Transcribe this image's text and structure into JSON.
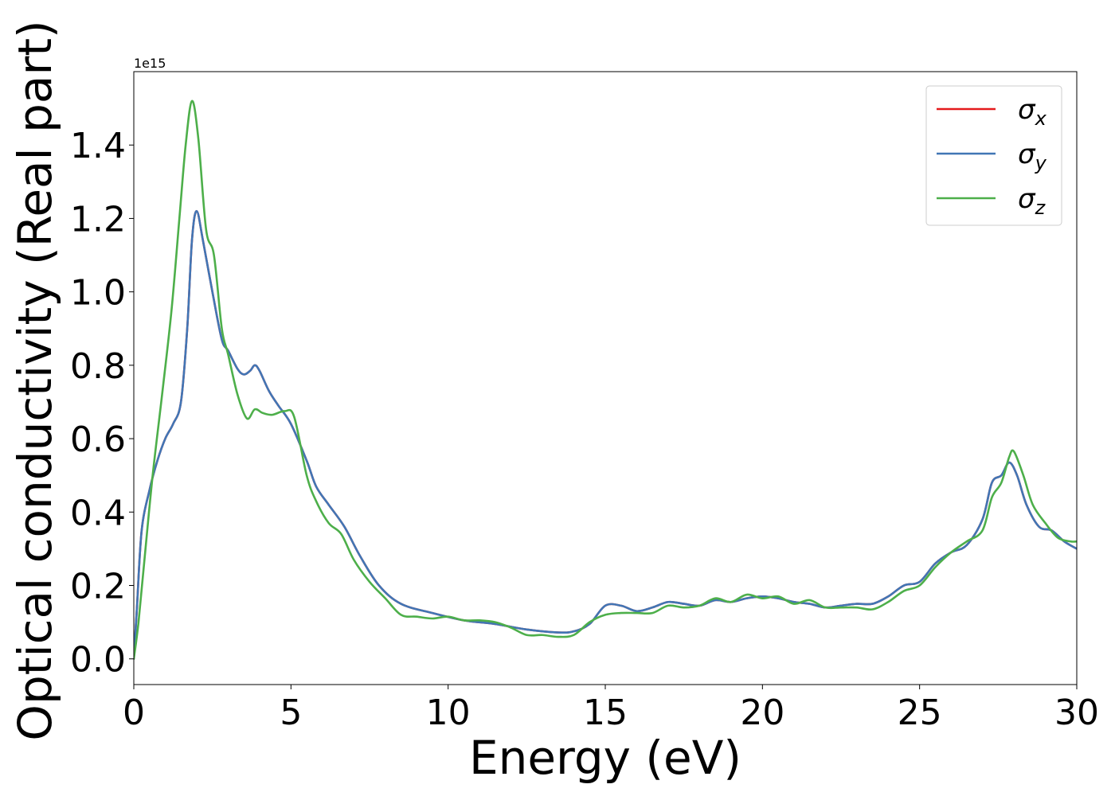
{
  "chart_data": {
    "type": "line",
    "title": "",
    "xlabel": "Energy (eV)",
    "ylabel": "Optical conductivity (Real part)",
    "y_offset_label": "1e15",
    "xlim": [
      0,
      30
    ],
    "ylim": [
      -0.07,
      1.6
    ],
    "x_ticks": [
      0,
      5,
      10,
      15,
      20,
      25,
      30
    ],
    "x_tick_labels": [
      "0",
      "5",
      "10",
      "15",
      "20",
      "25",
      "30"
    ],
    "y_ticks": [
      0.0,
      0.2,
      0.4,
      0.6,
      0.8,
      1.0,
      1.2,
      1.4
    ],
    "y_tick_labels": [
      "0.0",
      "0.2",
      "0.4",
      "0.6",
      "0.8",
      "1.0",
      "1.2",
      "1.4"
    ],
    "grid": false,
    "legend_position": "top-right",
    "series": [
      {
        "name": "σx",
        "legend_base": "σ",
        "legend_sub": "x",
        "color": "#e41a1c",
        "points": [
          [
            0,
            0
          ],
          [
            0.1,
            0.14
          ],
          [
            0.25,
            0.35
          ],
          [
            0.5,
            0.46
          ],
          [
            0.75,
            0.54
          ],
          [
            1.0,
            0.6
          ],
          [
            1.25,
            0.64
          ],
          [
            1.5,
            0.7
          ],
          [
            1.7,
            0.9
          ],
          [
            1.85,
            1.14
          ],
          [
            2.0,
            1.22
          ],
          [
            2.2,
            1.14
          ],
          [
            2.5,
            1.0
          ],
          [
            2.8,
            0.87
          ],
          [
            3.0,
            0.84
          ],
          [
            3.3,
            0.79
          ],
          [
            3.5,
            0.775
          ],
          [
            3.7,
            0.785
          ],
          [
            3.85,
            0.8
          ],
          [
            4.0,
            0.785
          ],
          [
            4.3,
            0.73
          ],
          [
            4.6,
            0.69
          ],
          [
            5.0,
            0.64
          ],
          [
            5.5,
            0.54
          ],
          [
            5.8,
            0.47
          ],
          [
            6.2,
            0.42
          ],
          [
            6.7,
            0.36
          ],
          [
            7.2,
            0.28
          ],
          [
            7.8,
            0.2
          ],
          [
            8.5,
            0.15
          ],
          [
            9.5,
            0.125
          ],
          [
            10.5,
            0.105
          ],
          [
            11.5,
            0.095
          ],
          [
            12.5,
            0.08
          ],
          [
            13.5,
            0.072
          ],
          [
            14.0,
            0.075
          ],
          [
            14.5,
            0.095
          ],
          [
            15.0,
            0.145
          ],
          [
            15.5,
            0.145
          ],
          [
            16.0,
            0.13
          ],
          [
            16.5,
            0.14
          ],
          [
            17.0,
            0.155
          ],
          [
            17.5,
            0.15
          ],
          [
            18.0,
            0.145
          ],
          [
            18.5,
            0.16
          ],
          [
            19.0,
            0.155
          ],
          [
            19.5,
            0.165
          ],
          [
            20.0,
            0.17
          ],
          [
            20.5,
            0.165
          ],
          [
            21.0,
            0.155
          ],
          [
            21.5,
            0.15
          ],
          [
            22.0,
            0.14
          ],
          [
            22.5,
            0.145
          ],
          [
            23.0,
            0.15
          ],
          [
            23.5,
            0.15
          ],
          [
            24.0,
            0.17
          ],
          [
            24.5,
            0.2
          ],
          [
            25.0,
            0.21
          ],
          [
            25.5,
            0.26
          ],
          [
            26.0,
            0.29
          ],
          [
            26.5,
            0.31
          ],
          [
            27.0,
            0.38
          ],
          [
            27.3,
            0.48
          ],
          [
            27.6,
            0.5
          ],
          [
            27.85,
            0.535
          ],
          [
            28.1,
            0.5
          ],
          [
            28.4,
            0.42
          ],
          [
            28.8,
            0.36
          ],
          [
            29.2,
            0.35
          ],
          [
            29.6,
            0.32
          ],
          [
            30.0,
            0.3
          ]
        ]
      },
      {
        "name": "σy",
        "legend_base": "σ",
        "legend_sub": "y",
        "color": "#4176b5",
        "points": [
          [
            0,
            0
          ],
          [
            0.1,
            0.14
          ],
          [
            0.25,
            0.35
          ],
          [
            0.5,
            0.46
          ],
          [
            0.75,
            0.54
          ],
          [
            1.0,
            0.6
          ],
          [
            1.25,
            0.64
          ],
          [
            1.5,
            0.7
          ],
          [
            1.7,
            0.9
          ],
          [
            1.85,
            1.14
          ],
          [
            2.0,
            1.22
          ],
          [
            2.2,
            1.14
          ],
          [
            2.5,
            1.0
          ],
          [
            2.8,
            0.87
          ],
          [
            3.0,
            0.84
          ],
          [
            3.3,
            0.79
          ],
          [
            3.5,
            0.775
          ],
          [
            3.7,
            0.785
          ],
          [
            3.85,
            0.8
          ],
          [
            4.0,
            0.785
          ],
          [
            4.3,
            0.73
          ],
          [
            4.6,
            0.69
          ],
          [
            5.0,
            0.64
          ],
          [
            5.5,
            0.54
          ],
          [
            5.8,
            0.47
          ],
          [
            6.2,
            0.42
          ],
          [
            6.7,
            0.36
          ],
          [
            7.2,
            0.28
          ],
          [
            7.8,
            0.2
          ],
          [
            8.5,
            0.15
          ],
          [
            9.5,
            0.125
          ],
          [
            10.5,
            0.105
          ],
          [
            11.5,
            0.095
          ],
          [
            12.5,
            0.08
          ],
          [
            13.5,
            0.072
          ],
          [
            14.0,
            0.075
          ],
          [
            14.5,
            0.095
          ],
          [
            15.0,
            0.145
          ],
          [
            15.5,
            0.145
          ],
          [
            16.0,
            0.13
          ],
          [
            16.5,
            0.14
          ],
          [
            17.0,
            0.155
          ],
          [
            17.5,
            0.15
          ],
          [
            18.0,
            0.145
          ],
          [
            18.5,
            0.16
          ],
          [
            19.0,
            0.155
          ],
          [
            19.5,
            0.165
          ],
          [
            20.0,
            0.17
          ],
          [
            20.5,
            0.165
          ],
          [
            21.0,
            0.155
          ],
          [
            21.5,
            0.15
          ],
          [
            22.0,
            0.14
          ],
          [
            22.5,
            0.145
          ],
          [
            23.0,
            0.15
          ],
          [
            23.5,
            0.15
          ],
          [
            24.0,
            0.17
          ],
          [
            24.5,
            0.2
          ],
          [
            25.0,
            0.21
          ],
          [
            25.5,
            0.26
          ],
          [
            26.0,
            0.29
          ],
          [
            26.5,
            0.31
          ],
          [
            27.0,
            0.38
          ],
          [
            27.3,
            0.48
          ],
          [
            27.6,
            0.5
          ],
          [
            27.85,
            0.535
          ],
          [
            28.1,
            0.5
          ],
          [
            28.4,
            0.42
          ],
          [
            28.8,
            0.36
          ],
          [
            29.2,
            0.35
          ],
          [
            29.6,
            0.32
          ],
          [
            30.0,
            0.3
          ]
        ]
      },
      {
        "name": "σz",
        "legend_base": "σ",
        "legend_sub": "z",
        "color": "#4daf4a",
        "points": [
          [
            0,
            0
          ],
          [
            0.15,
            0.1
          ],
          [
            0.35,
            0.28
          ],
          [
            0.6,
            0.5
          ],
          [
            0.9,
            0.72
          ],
          [
            1.2,
            0.95
          ],
          [
            1.45,
            1.2
          ],
          [
            1.65,
            1.4
          ],
          [
            1.85,
            1.52
          ],
          [
            2.05,
            1.42
          ],
          [
            2.3,
            1.17
          ],
          [
            2.55,
            1.1
          ],
          [
            2.8,
            0.9
          ],
          [
            3.0,
            0.83
          ],
          [
            3.3,
            0.72
          ],
          [
            3.6,
            0.655
          ],
          [
            3.85,
            0.68
          ],
          [
            4.1,
            0.67
          ],
          [
            4.4,
            0.665
          ],
          [
            4.8,
            0.675
          ],
          [
            5.1,
            0.66
          ],
          [
            5.5,
            0.5
          ],
          [
            5.8,
            0.43
          ],
          [
            6.2,
            0.37
          ],
          [
            6.6,
            0.34
          ],
          [
            7.0,
            0.27
          ],
          [
            7.5,
            0.21
          ],
          [
            8.0,
            0.165
          ],
          [
            8.5,
            0.12
          ],
          [
            9.0,
            0.115
          ],
          [
            9.5,
            0.11
          ],
          [
            10.0,
            0.115
          ],
          [
            10.5,
            0.105
          ],
          [
            11.0,
            0.105
          ],
          [
            11.5,
            0.1
          ],
          [
            12.0,
            0.085
          ],
          [
            12.5,
            0.065
          ],
          [
            13.0,
            0.065
          ],
          [
            13.5,
            0.06
          ],
          [
            14.0,
            0.065
          ],
          [
            14.5,
            0.1
          ],
          [
            15.0,
            0.12
          ],
          [
            15.5,
            0.125
          ],
          [
            16.0,
            0.125
          ],
          [
            16.5,
            0.125
          ],
          [
            17.0,
            0.145
          ],
          [
            17.5,
            0.14
          ],
          [
            18.0,
            0.145
          ],
          [
            18.5,
            0.165
          ],
          [
            19.0,
            0.155
          ],
          [
            19.5,
            0.175
          ],
          [
            20.0,
            0.165
          ],
          [
            20.5,
            0.17
          ],
          [
            21.0,
            0.15
          ],
          [
            21.5,
            0.16
          ],
          [
            22.0,
            0.14
          ],
          [
            22.5,
            0.14
          ],
          [
            23.0,
            0.14
          ],
          [
            23.5,
            0.135
          ],
          [
            24.0,
            0.155
          ],
          [
            24.5,
            0.185
          ],
          [
            25.0,
            0.2
          ],
          [
            25.5,
            0.25
          ],
          [
            26.0,
            0.29
          ],
          [
            26.5,
            0.32
          ],
          [
            27.0,
            0.35
          ],
          [
            27.3,
            0.44
          ],
          [
            27.6,
            0.48
          ],
          [
            27.85,
            0.55
          ],
          [
            28.0,
            0.565
          ],
          [
            28.3,
            0.5
          ],
          [
            28.6,
            0.42
          ],
          [
            29.0,
            0.37
          ],
          [
            29.4,
            0.33
          ],
          [
            29.8,
            0.32
          ],
          [
            30.0,
            0.32
          ]
        ]
      }
    ]
  }
}
